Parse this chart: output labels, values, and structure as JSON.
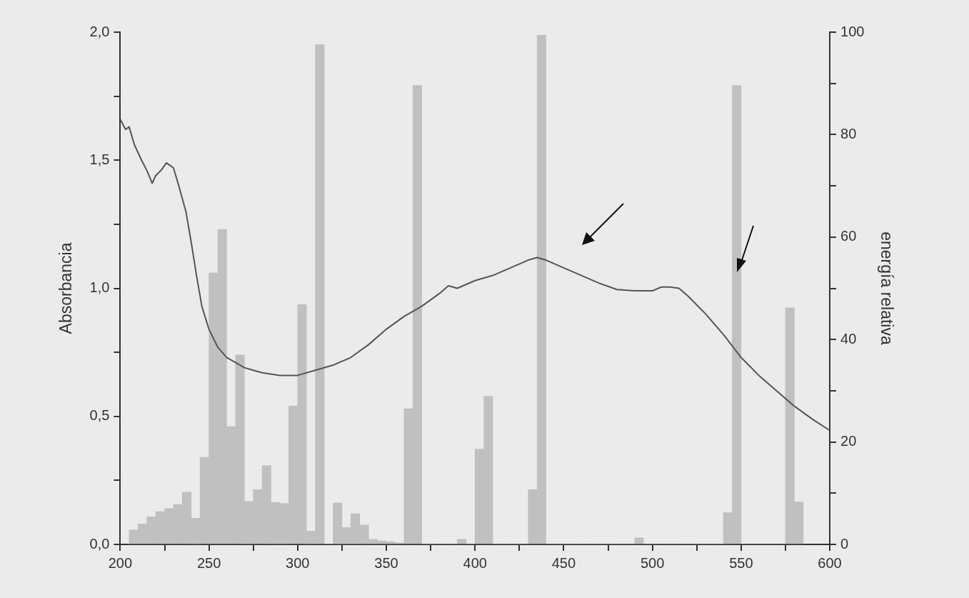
{
  "chart_data": {
    "type": "line",
    "ylabel": "Absorbancia",
    "y2label": "energía relativa",
    "xlim": [
      200,
      600
    ],
    "xticks": [
      200,
      {
        "value": 225,
        "label": null
      },
      250,
      {
        "value": 275,
        "label": null
      },
      300,
      {
        "value": 325,
        "label": null
      },
      350,
      {
        "value": 375,
        "label": null
      },
      400,
      {
        "value": 425,
        "label": null
      },
      450,
      {
        "value": 475,
        "label": null
      },
      500,
      {
        "value": 525,
        "label": null
      },
      550,
      {
        "value": 575,
        "label": null
      },
      600
    ],
    "ylim": [
      0,
      2
    ],
    "yticks": [
      {
        "value": 0,
        "label": "0,0"
      },
      {
        "value": 0.25,
        "label": null
      },
      {
        "value": 0.5,
        "label": "0,5"
      },
      {
        "value": 0.75,
        "label": null
      },
      {
        "value": 1,
        "label": "1,0"
      },
      {
        "value": 1.25,
        "label": null
      },
      {
        "value": 1.5,
        "label": "1,5"
      },
      {
        "value": 1.75,
        "label": null
      },
      {
        "value": 2,
        "label": "2,0"
      }
    ],
    "y2lim": [
      0,
      100
    ],
    "y2ticks": [
      0,
      {
        "value": 10,
        "label": null
      },
      20,
      {
        "value": 30,
        "label": null
      },
      40,
      {
        "value": 50,
        "label": null
      },
      60,
      {
        "value": 70,
        "label": null
      },
      80,
      {
        "value": 90,
        "label": null
      },
      100
    ],
    "grid": false,
    "legend": false,
    "marker": "none",
    "line_style": "solid",
    "series": [
      {
        "type": "histogram",
        "axis": "y2",
        "color": "#c0c0c0",
        "bins": [
          205,
          210,
          215,
          220,
          225,
          230,
          235,
          240,
          245,
          250,
          255,
          260,
          265,
          270,
          275,
          280,
          285,
          290,
          295,
          300,
          305,
          310,
          315,
          320,
          325,
          330,
          335,
          340,
          345,
          350,
          355,
          360,
          365,
          370,
          375,
          380,
          385,
          390,
          395,
          400,
          405,
          410,
          415,
          420,
          425,
          430,
          435,
          440,
          445,
          450,
          455,
          460,
          465,
          470,
          475,
          480,
          485,
          490,
          495,
          500,
          505,
          510,
          515,
          520,
          525,
          530,
          535,
          540,
          545,
          550,
          555,
          560,
          565,
          570,
          575,
          580,
          585
        ],
        "values": [
          2.8,
          4.0,
          5.4,
          6.4,
          7.0,
          7.8,
          10.2,
          5.1,
          17,
          53,
          61.5,
          23,
          37,
          8.4,
          10.7,
          15.4,
          8.2,
          8.0,
          27,
          46.8,
          2.6,
          97.6,
          0,
          8.1,
          3.3,
          6.0,
          3.8,
          1.0,
          0.7,
          0.5,
          0.3,
          26.5,
          89.6,
          0,
          0,
          0,
          0,
          1.0,
          0,
          18.6,
          28.9,
          0,
          0,
          0,
          0,
          10.7,
          99.4,
          0,
          0,
          0,
          0,
          0,
          0,
          0,
          0,
          0,
          0,
          1.3,
          0,
          0,
          0,
          0,
          0,
          0,
          0,
          0,
          0,
          6.2,
          89.6,
          0,
          0,
          0,
          0,
          0,
          46.2,
          8.3
        ]
      },
      {
        "axis": "y",
        "color": "#555555",
        "x": [
          200,
          203,
          205,
          208,
          212,
          215,
          218,
          220,
          223,
          226,
          230,
          233,
          237,
          240,
          243,
          246,
          250,
          255,
          260,
          265,
          270,
          275,
          280,
          290,
          300,
          310,
          320,
          330,
          340,
          350,
          360,
          370,
          380,
          385,
          390,
          400,
          410,
          420,
          430,
          435,
          440,
          450,
          460,
          470,
          480,
          490,
          500,
          505,
          510,
          515,
          520,
          530,
          540,
          550,
          560,
          570,
          580,
          590,
          600
        ],
        "values": [
          1.66,
          1.62,
          1.63,
          1.56,
          1.5,
          1.46,
          1.41,
          1.44,
          1.46,
          1.49,
          1.47,
          1.4,
          1.3,
          1.18,
          1.05,
          0.93,
          0.84,
          0.77,
          0.73,
          0.71,
          0.69,
          0.68,
          0.67,
          0.66,
          0.66,
          0.68,
          0.7,
          0.73,
          0.78,
          0.84,
          0.89,
          0.93,
          0.98,
          1.01,
          1.0,
          1.03,
          1.05,
          1.08,
          1.11,
          1.12,
          1.11,
          1.08,
          1.05,
          1.02,
          0.995,
          0.99,
          0.99,
          1.005,
          1.005,
          1.0,
          0.97,
          0.9,
          0.82,
          0.73,
          0.66,
          0.6,
          0.54,
          0.49,
          0.445
        ]
      }
    ]
  }
}
